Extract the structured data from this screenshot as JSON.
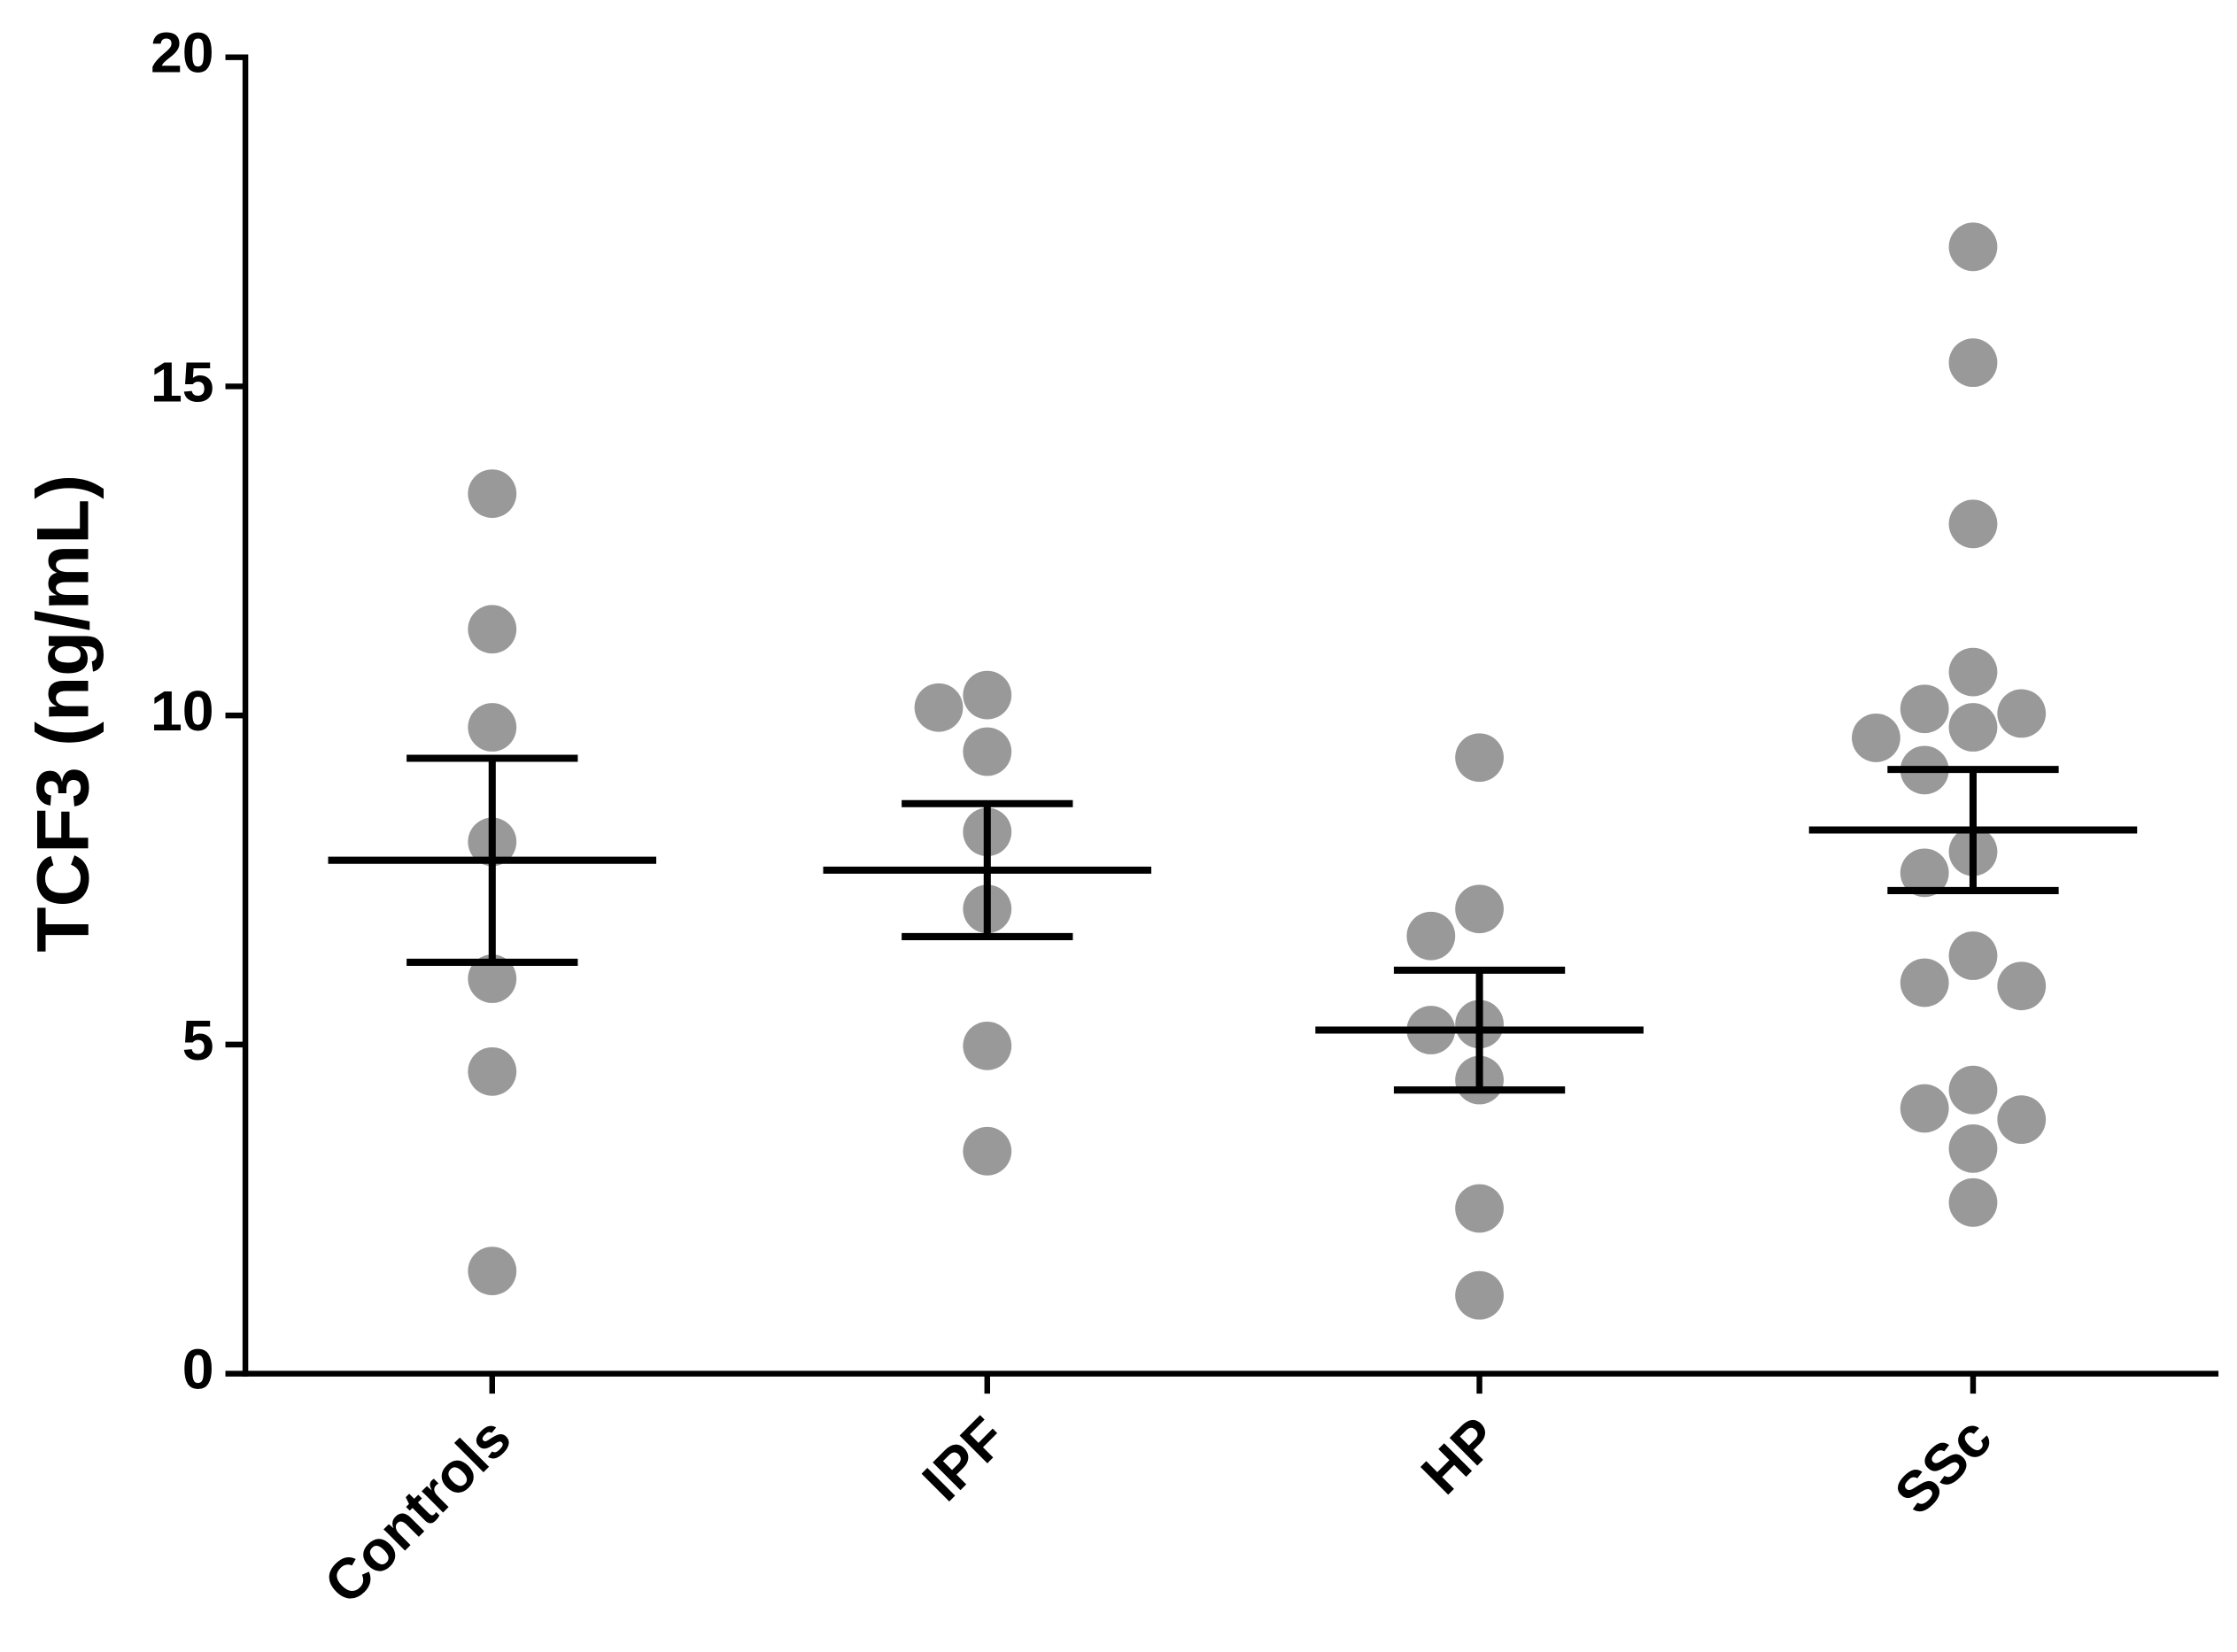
{
  "chart_data": {
    "type": "dot",
    "y_label": "TCF3 (ng/mL)",
    "ylim": [
      0,
      20
    ],
    "yticks": [
      0,
      5,
      10,
      15,
      20
    ],
    "dot_color": "#999999",
    "line_color": "#000000",
    "groups": [
      {
        "name": "Controls",
        "values": [
          13.37,
          11.31,
          9.82,
          8.08,
          6.0,
          4.59,
          1.56
        ],
        "mean": 7.8,
        "sem": 1.55
      },
      {
        "name": "IPF",
        "values": [
          10.31,
          10.12,
          9.45,
          8.23,
          7.06,
          4.98,
          3.38
        ],
        "mean": 7.65,
        "sem": 1.01
      },
      {
        "name": "HP",
        "values": [
          9.36,
          7.06,
          6.65,
          5.31,
          5.22,
          4.46,
          2.51,
          1.19
        ],
        "mean": 5.22,
        "sem": 0.91
      },
      {
        "name": "SSc",
        "values": [
          17.12,
          15.36,
          12.91,
          10.66,
          10.1,
          10.03,
          9.82,
          9.66,
          9.17,
          7.93,
          7.61,
          6.35,
          5.94,
          5.89,
          4.31,
          4.03,
          3.86,
          3.42,
          2.6
        ],
        "mean": 8.26,
        "sem": 0.92
      }
    ]
  }
}
